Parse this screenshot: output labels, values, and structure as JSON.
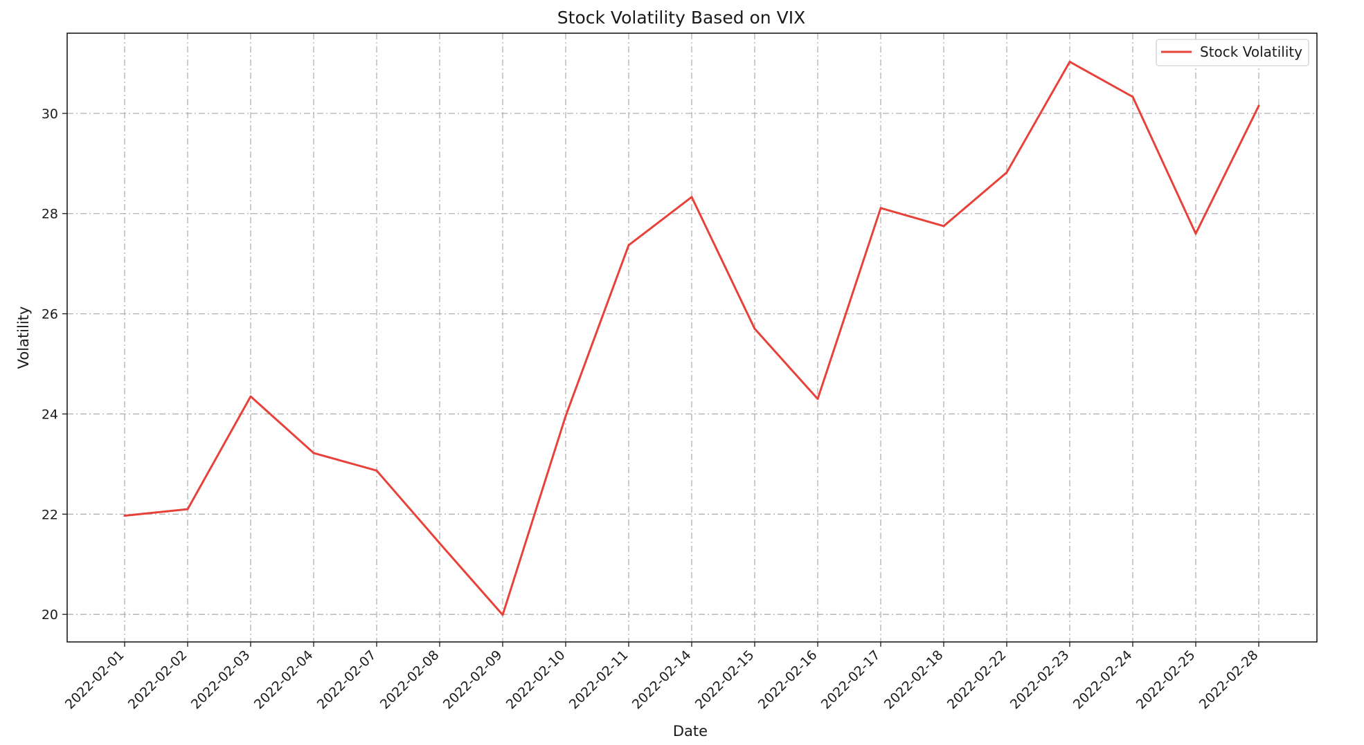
{
  "chart_data": {
    "type": "line",
    "title": "Stock Volatility Based on VIX",
    "xlabel": "Date",
    "ylabel": "Volatility",
    "categories": [
      "2022-02-01",
      "2022-02-02",
      "2022-02-03",
      "2022-02-04",
      "2022-02-07",
      "2022-02-08",
      "2022-02-09",
      "2022-02-10",
      "2022-02-11",
      "2022-02-14",
      "2022-02-15",
      "2022-02-16",
      "2022-02-17",
      "2022-02-18",
      "2022-02-22",
      "2022-02-23",
      "2022-02-24",
      "2022-02-25",
      "2022-02-28"
    ],
    "series": [
      {
        "name": "Stock Volatility",
        "color": "#e8413a",
        "values": [
          21.97,
          22.1,
          24.35,
          23.22,
          22.87,
          21.42,
          19.99,
          23.96,
          27.37,
          28.33,
          25.7,
          24.3,
          28.11,
          27.75,
          28.82,
          31.03,
          30.33,
          27.6,
          30.15
        ]
      }
    ],
    "yticks": [
      20,
      22,
      24,
      26,
      28,
      30
    ],
    "ylim": [
      19.45,
      31.6
    ],
    "grid": true,
    "legend": "top-right"
  }
}
